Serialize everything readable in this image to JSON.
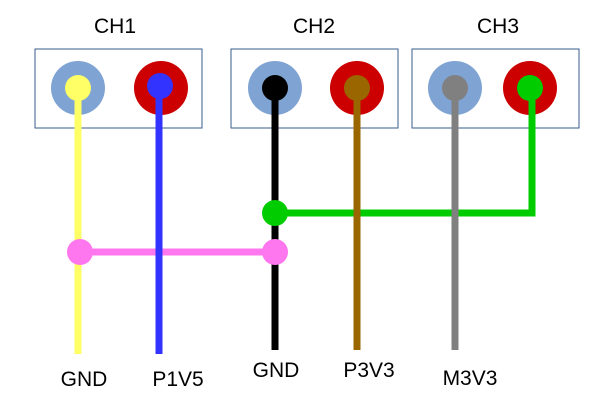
{
  "channels": [
    {
      "name": "CH1"
    },
    {
      "name": "CH2"
    },
    {
      "name": "CH3"
    }
  ],
  "wires": [
    {
      "label": "GND",
      "color": "#ffff66"
    },
    {
      "label": "P1V5",
      "color": "#3333ff"
    },
    {
      "label": "GND",
      "color": "#000000"
    },
    {
      "label": "P3V3",
      "color": "#996600"
    },
    {
      "label": "M3V3",
      "color": "#808080"
    }
  ],
  "terminals": {
    "negative_color": "#7fa3d2",
    "positive_color": "#cc0000"
  },
  "links": [
    {
      "color": "#ff77ee",
      "joins": "CH1 GND – CH2 GND"
    },
    {
      "color": "#00cc00",
      "joins": "CH2 GND – CH3 +"
    }
  ],
  "box_border_color": "#3a5e8c"
}
